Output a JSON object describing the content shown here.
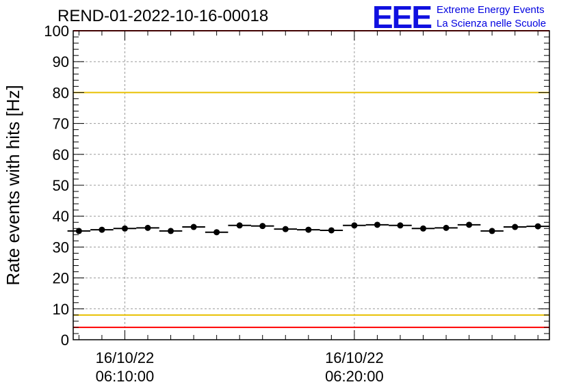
{
  "title": "REND-01-2022-10-16-00018",
  "logo": {
    "letters": "EEE",
    "line1": "Extreme Energy Events",
    "line2": "La Scienza nelle Scuole",
    "color": "#1010e0"
  },
  "chart_data": {
    "type": "scatter",
    "title": "REND-01-2022-10-16-00018",
    "xlabel": "",
    "ylabel": "Rate events with hits [Hz]",
    "ylim": [
      0,
      100
    ],
    "xlim": [
      "16/10/22 06:07:45",
      "16/10/22 06:28:30"
    ],
    "grid": true,
    "yticks": [
      "0",
      "10",
      "20",
      "30",
      "40",
      "50",
      "60",
      "70",
      "80",
      "90",
      "100"
    ],
    "xticks": [
      {
        "date": "16/10/22",
        "time": "06:10:00"
      },
      {
        "date": "16/10/22",
        "time": "06:20:00"
      }
    ],
    "reference_lines": [
      {
        "y": 100,
        "color": "#ff0000"
      },
      {
        "y": 80,
        "color": "#e8c000"
      },
      {
        "y": 8,
        "color": "#e8c000"
      },
      {
        "y": 4,
        "color": "#ff0000"
      }
    ],
    "series": [
      {
        "x": [
          "06:08:00",
          "06:09:00",
          "06:10:00",
          "06:11:00",
          "06:12:00",
          "06:13:00",
          "06:14:00",
          "06:15:00",
          "06:16:00",
          "06:17:00",
          "06:18:00",
          "06:19:00",
          "06:20:00",
          "06:21:00",
          "06:22:00",
          "06:23:00",
          "06:24:00",
          "06:25:00",
          "06:26:00",
          "06:27:00",
          "06:28:00"
        ],
        "values": [
          35.2,
          35.6,
          36.0,
          36.2,
          35.2,
          36.5,
          34.8,
          37.0,
          36.8,
          35.8,
          35.6,
          35.4,
          37.0,
          37.2,
          37.0,
          36.0,
          36.2,
          37.2,
          35.2,
          36.5,
          36.7
        ],
        "color": "#000000"
      }
    ]
  }
}
